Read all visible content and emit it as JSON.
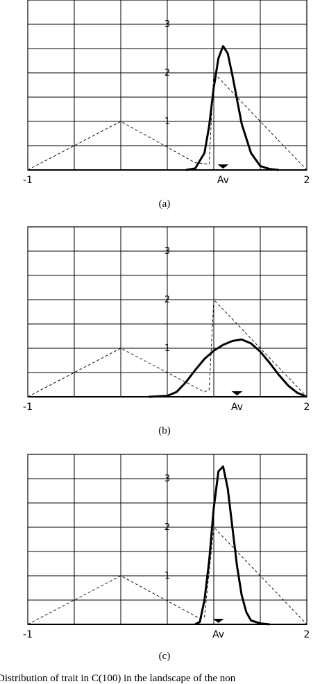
{
  "caption": "Distribution of trait in C(100) in the landscape of the non",
  "chart_data": [
    {
      "type": "line",
      "subtitle": "(a)",
      "xlim": [
        -1,
        2
      ],
      "ylim": [
        0,
        3.5
      ],
      "x_tick_labels": [
        "-1",
        "Av",
        "2"
      ],
      "av_x": 1.1,
      "y_tick_labels": [
        "1",
        "2",
        "3"
      ],
      "y_ticks": [
        1,
        2,
        3
      ],
      "grid": true,
      "series": [
        {
          "style": "dashed",
          "x": [
            -1,
            0,
            0.8,
            0.95,
            1.0,
            2.0
          ],
          "y": [
            0,
            1,
            0.15,
            0.12,
            2.0,
            0
          ]
        },
        {
          "style": "solid",
          "x": [
            0.7,
            0.8,
            0.9,
            0.95,
            1.0,
            1.05,
            1.1,
            1.15,
            1.2,
            1.25,
            1.3,
            1.4,
            1.5,
            1.6,
            1.7
          ],
          "y": [
            0,
            0.03,
            0.35,
            0.9,
            1.7,
            2.3,
            2.55,
            2.4,
            1.95,
            1.45,
            0.95,
            0.35,
            0.08,
            0.02,
            0
          ]
        }
      ]
    },
    {
      "type": "line",
      "subtitle": "(b)",
      "xlim": [
        -1,
        2
      ],
      "ylim": [
        0,
        3.5
      ],
      "x_tick_labels": [
        "-1",
        "Av",
        "2"
      ],
      "av_x": 1.25,
      "y_tick_labels": [
        "1",
        "2",
        "3"
      ],
      "y_ticks": [
        1,
        2,
        3
      ],
      "grid": true,
      "series": [
        {
          "style": "dashed",
          "x": [
            -1,
            0,
            0.9,
            0.95,
            1.0,
            2.0
          ],
          "y": [
            0,
            1,
            0.1,
            0.15,
            2.0,
            0
          ]
        },
        {
          "style": "solid",
          "x": [
            0.3,
            0.5,
            0.6,
            0.7,
            0.8,
            0.9,
            1.0,
            1.1,
            1.2,
            1.3,
            1.4,
            1.5,
            1.6,
            1.7,
            1.8,
            1.9,
            2.0
          ],
          "y": [
            0,
            0.02,
            0.1,
            0.3,
            0.55,
            0.78,
            0.95,
            1.07,
            1.15,
            1.18,
            1.1,
            0.93,
            0.7,
            0.45,
            0.23,
            0.08,
            0
          ]
        }
      ]
    },
    {
      "type": "line",
      "subtitle": "(c)",
      "xlim": [
        -1,
        2
      ],
      "ylim": [
        0,
        3.5
      ],
      "x_tick_labels": [
        "-1",
        "Av",
        "2"
      ],
      "av_x": 1.05,
      "y_tick_labels": [
        "1",
        "2",
        "3"
      ],
      "y_ticks": [
        1,
        2,
        3
      ],
      "grid": true,
      "series": [
        {
          "style": "dashed",
          "x": [
            -1,
            0,
            0.85,
            0.9,
            1.0,
            2.0
          ],
          "y": [
            0,
            1,
            0.12,
            0.15,
            2.0,
            0
          ]
        },
        {
          "style": "solid",
          "x": [
            0.8,
            0.85,
            0.9,
            0.95,
            1.0,
            1.05,
            1.1,
            1.15,
            1.2,
            1.25,
            1.3,
            1.35,
            1.4,
            1.5,
            1.6
          ],
          "y": [
            0,
            0.05,
            0.5,
            1.3,
            2.4,
            3.15,
            3.25,
            2.8,
            2.0,
            1.2,
            0.6,
            0.25,
            0.08,
            0.02,
            0
          ]
        }
      ]
    }
  ]
}
